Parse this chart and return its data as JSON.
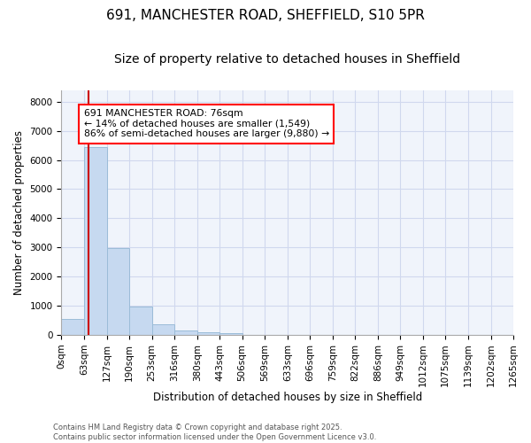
{
  "title": "691, MANCHESTER ROAD, SHEFFIELD, S10 5PR",
  "subtitle": "Size of property relative to detached houses in Sheffield",
  "xlabel": "Distribution of detached houses by size in Sheffield",
  "ylabel": "Number of detached properties",
  "bar_edges": [
    0,
    63,
    127,
    190,
    253,
    316,
    380,
    443,
    506,
    569,
    633,
    696,
    759,
    822,
    886,
    949,
    1012,
    1075,
    1139,
    1202,
    1265
  ],
  "bar_heights": [
    550,
    6450,
    2970,
    975,
    350,
    150,
    100,
    50,
    0,
    0,
    0,
    0,
    0,
    0,
    0,
    0,
    0,
    0,
    0,
    0
  ],
  "bar_color": "#c6d9f0",
  "bar_edgecolor": "#9bbcd8",
  "property_line_x": 76,
  "property_line_color": "#cc0000",
  "annotation_title": "691 MANCHESTER ROAD: 76sqm",
  "annotation_line1": "← 14% of detached houses are smaller (1,549)",
  "annotation_line2": "86% of semi-detached houses are larger (9,880) →",
  "ylim": [
    0,
    8400
  ],
  "yticks": [
    0,
    1000,
    2000,
    3000,
    4000,
    5000,
    6000,
    7000,
    8000
  ],
  "footer_line1": "Contains HM Land Registry data © Crown copyright and database right 2025.",
  "footer_line2": "Contains public sector information licensed under the Open Government Licence v3.0.",
  "bg_color": "#ffffff",
  "plot_bg_color": "#f0f4fb",
  "grid_color": "#d0d8ee",
  "title_fontsize": 11,
  "subtitle_fontsize": 10,
  "axis_label_fontsize": 8.5,
  "tick_fontsize": 7.5,
  "footer_fontsize": 6
}
